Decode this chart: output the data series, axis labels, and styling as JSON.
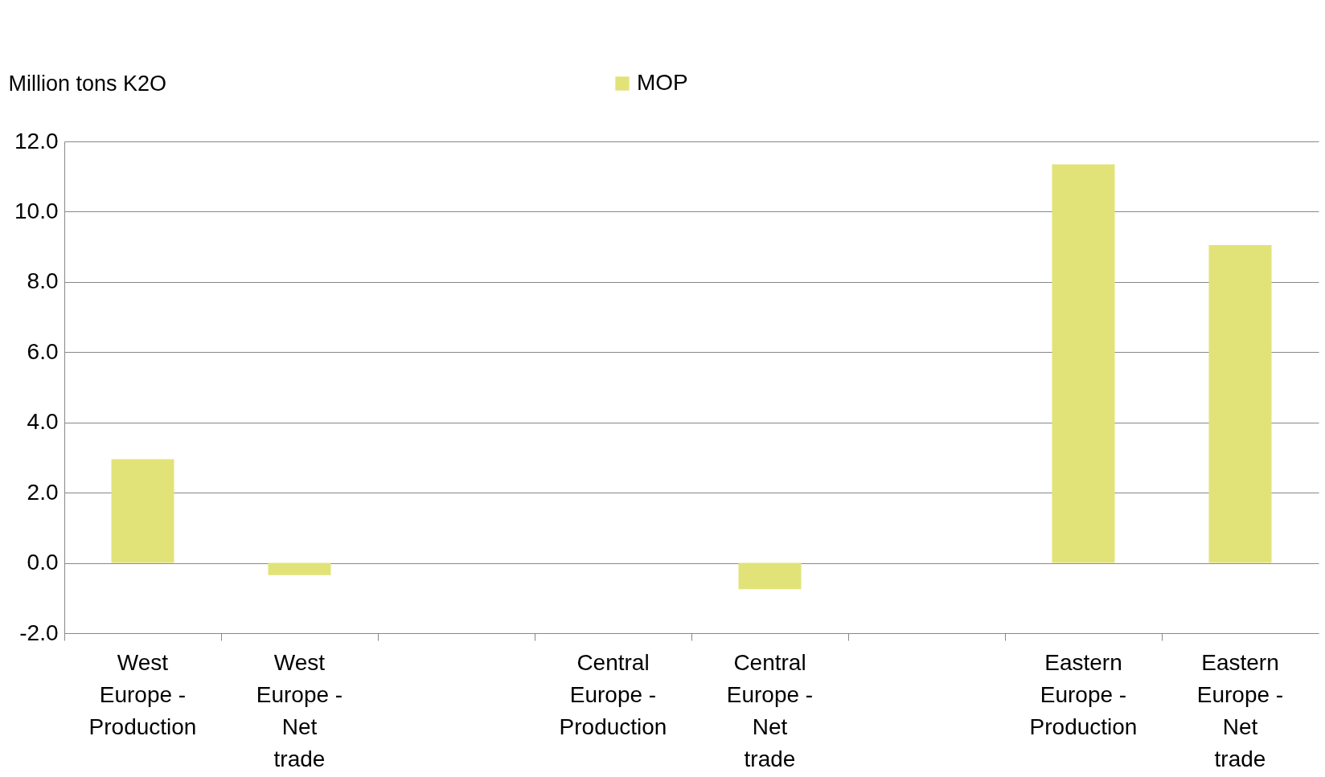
{
  "chart_data": {
    "type": "bar",
    "ylabel": "Million tons K2O",
    "categories": [
      "West Europe - Production",
      "West Europe - Net trade",
      null,
      "Central Europe - Production",
      "Central Europe - Net trade",
      null,
      "Eastern Europe - Production",
      "Eastern Europe - Net trade"
    ],
    "series": [
      {
        "name": "MOP",
        "color": "#e1e378",
        "values": [
          2.95,
          -0.35,
          null,
          null,
          -0.75,
          null,
          11.35,
          9.05
        ]
      }
    ],
    "ylim": [
      -2,
      12
    ],
    "yticks": [
      {
        "value": -2,
        "label": "-2.0"
      },
      {
        "value": 0,
        "label": "0.0"
      },
      {
        "value": 2,
        "label": "2.0"
      },
      {
        "value": 4,
        "label": "4.0"
      },
      {
        "value": 6,
        "label": "6.0"
      },
      {
        "value": 8,
        "label": "8.0"
      },
      {
        "value": 10,
        "label": "10.0"
      },
      {
        "value": 12,
        "label": "12.0"
      }
    ],
    "grid": "y",
    "legend": "top"
  }
}
